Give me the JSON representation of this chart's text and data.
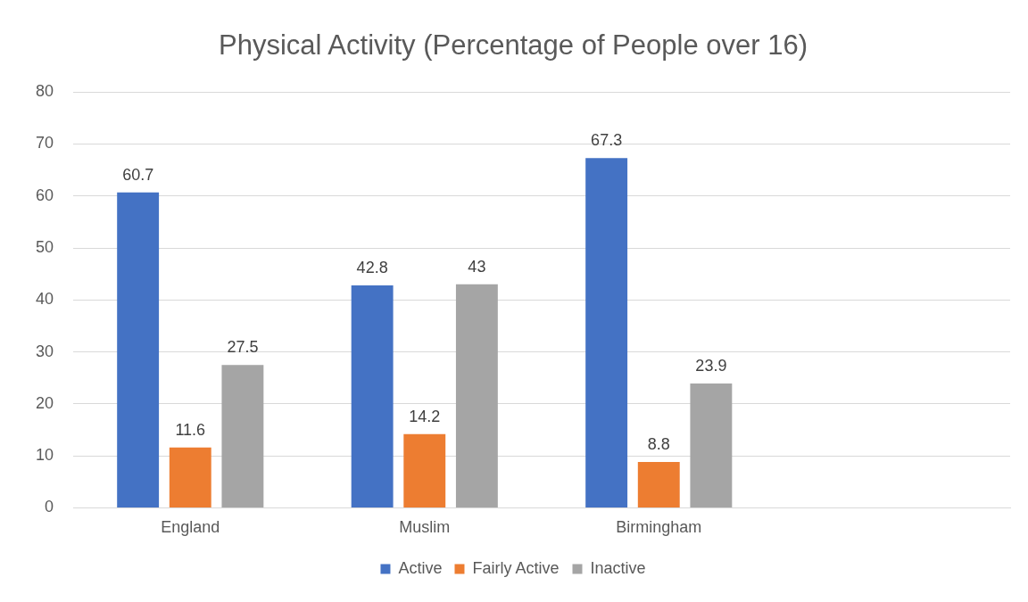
{
  "chart_data": {
    "type": "bar",
    "title": "Physical Activity (Percentage of People over 16)",
    "categories": [
      "England",
      "Muslim",
      "Birmingham",
      null
    ],
    "series": [
      {
        "name": "Active",
        "color": "#4472c4",
        "values": [
          60.7,
          42.8,
          67.3,
          null
        ]
      },
      {
        "name": "Fairly Active",
        "color": "#ed7d31",
        "values": [
          11.6,
          14.2,
          8.8,
          null
        ]
      },
      {
        "name": "Inactive",
        "color": "#a5a5a5",
        "values": [
          27.5,
          43,
          23.9,
          null
        ]
      }
    ],
    "ylim": [
      0,
      80
    ],
    "yticks": [
      0,
      10,
      20,
      30,
      40,
      50,
      60,
      70,
      80
    ],
    "grid": "y",
    "legend": "bottom",
    "data_labels": true
  }
}
